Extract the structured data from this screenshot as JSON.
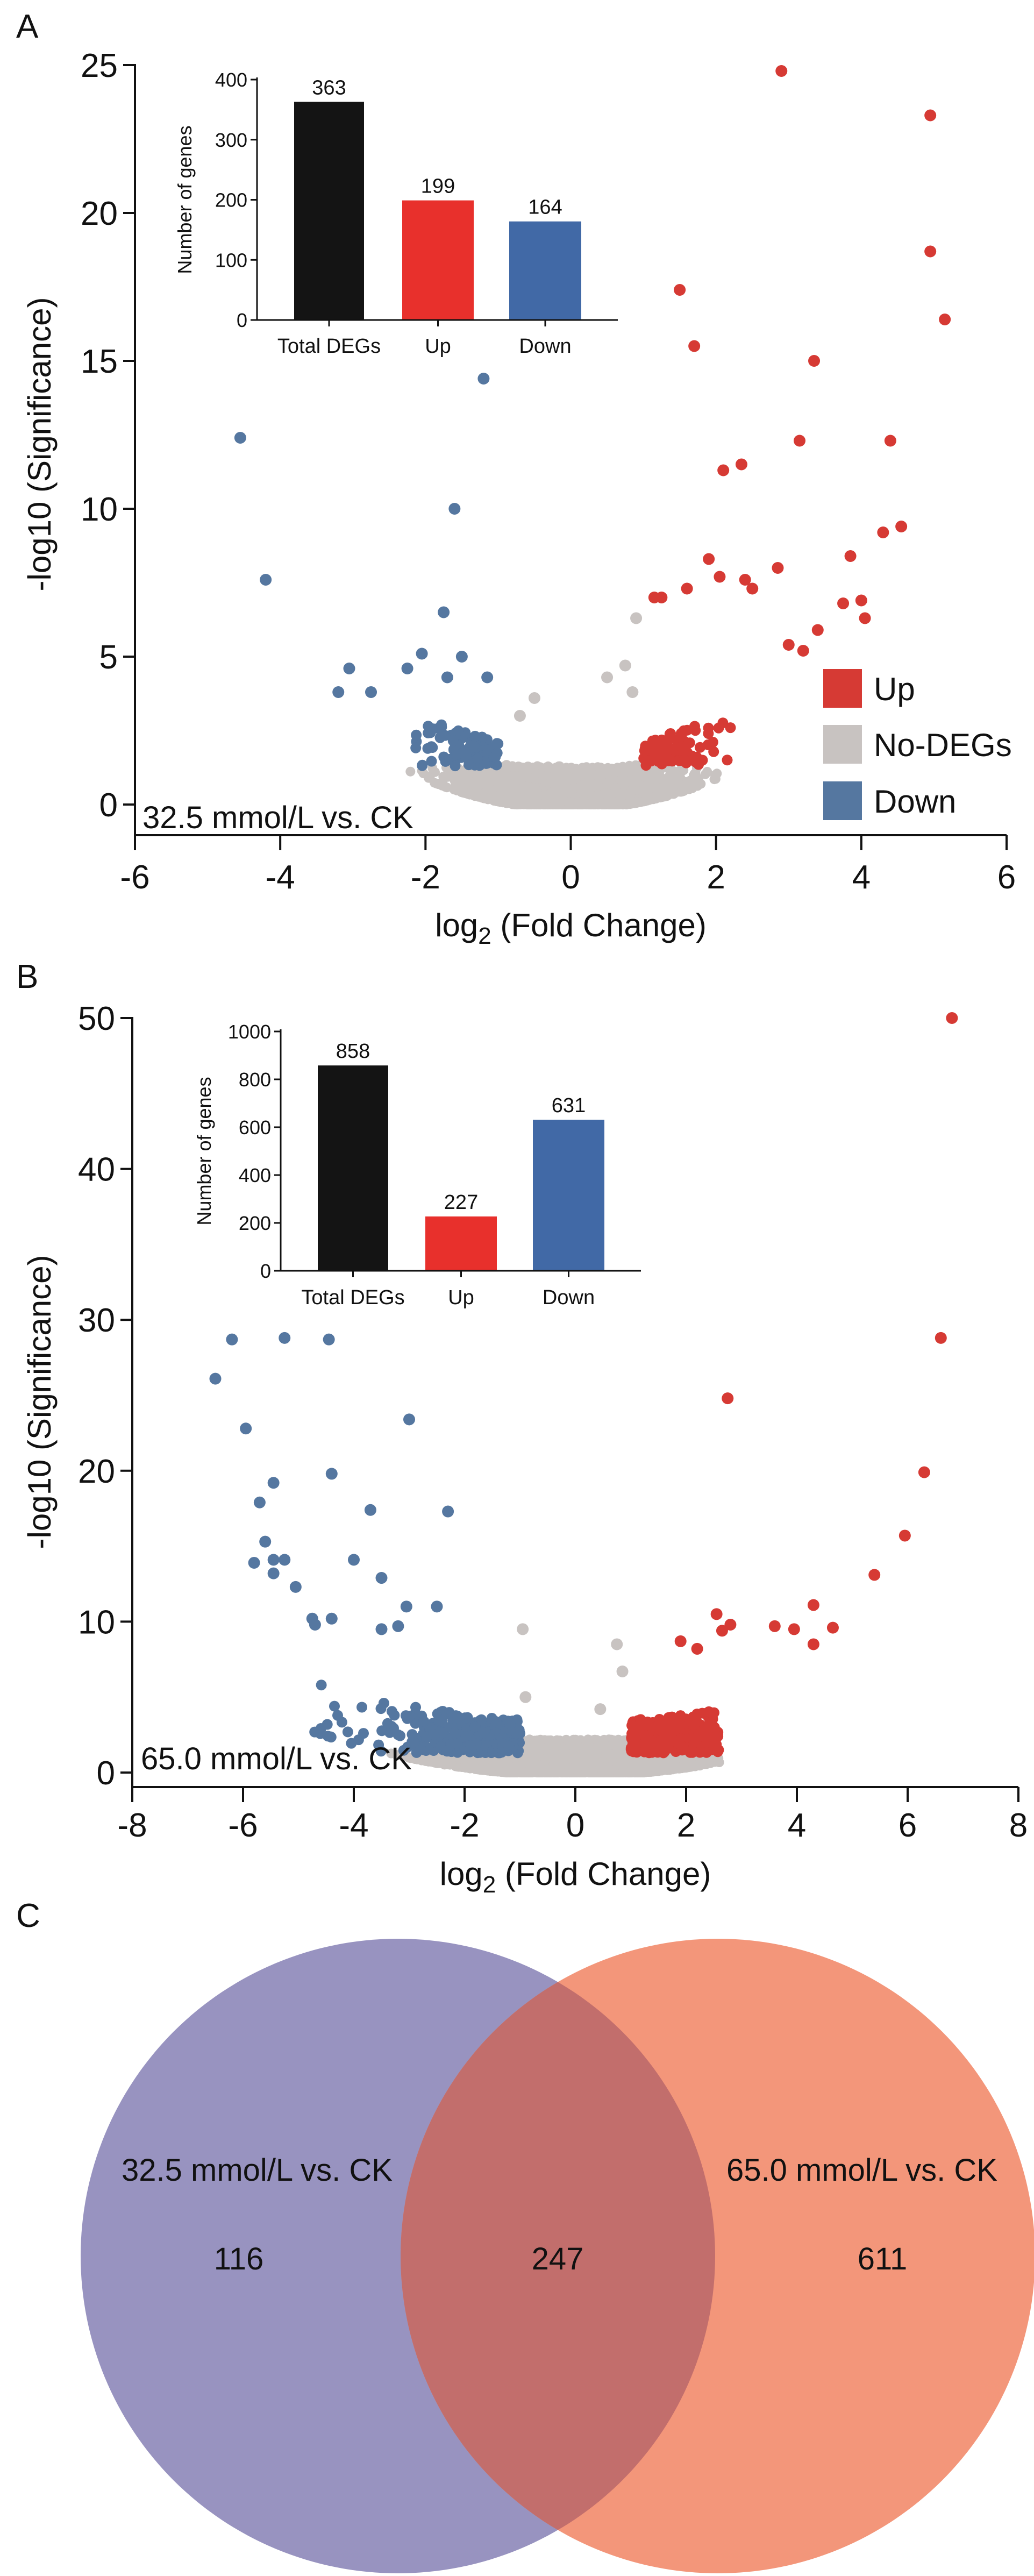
{
  "chart_data": [
    {
      "type": "scatter",
      "panel_label": "A",
      "title": "32.5 mmol/L vs. CK",
      "xlabel_base": "log",
      "xlabel_sub": "2",
      "xlabel_rest": " (Fold Change)",
      "ylabel": "-log10 (Significance)",
      "xlim": [
        -6,
        6
      ],
      "ylim": [
        0,
        25
      ],
      "xticks": [
        -6,
        -4,
        -2,
        0,
        2,
        4,
        6
      ],
      "yticks": [
        0,
        5,
        10,
        15,
        20,
        25
      ],
      "legend": [
        {
          "label": "Up",
          "color": "#d63a34"
        },
        {
          "label": "No-DEGs",
          "color": "#c8c3c1"
        },
        {
          "label": "Down",
          "color": "#5577a0"
        }
      ],
      "legend_position": "bottom-right",
      "outliers": {
        "up": [
          [
            2.9,
            24.8
          ],
          [
            4.95,
            23.3
          ],
          [
            4.95,
            18.7
          ],
          [
            5.15,
            16.4
          ],
          [
            1.5,
            17.4
          ],
          [
            1.7,
            15.5
          ],
          [
            3.35,
            15.0
          ],
          [
            3.15,
            12.3
          ],
          [
            4.4,
            12.3
          ],
          [
            2.1,
            11.3
          ],
          [
            2.35,
            11.5
          ],
          [
            4.55,
            9.4
          ],
          [
            4.3,
            9.2
          ],
          [
            3.85,
            8.4
          ],
          [
            3.75,
            6.8
          ],
          [
            4.0,
            6.9
          ],
          [
            4.05,
            6.3
          ],
          [
            2.85,
            8.0
          ],
          [
            1.9,
            8.3
          ],
          [
            2.05,
            7.7
          ],
          [
            2.4,
            7.6
          ],
          [
            2.5,
            7.3
          ],
          [
            1.15,
            7.0
          ],
          [
            1.25,
            7.0
          ],
          [
            1.6,
            7.3
          ],
          [
            3.4,
            5.9
          ],
          [
            3.0,
            5.4
          ],
          [
            3.2,
            5.2
          ]
        ],
        "down": [
          [
            -4.55,
            12.4
          ],
          [
            -4.2,
            7.6
          ],
          [
            -1.2,
            14.4
          ],
          [
            -1.6,
            10.0
          ],
          [
            -1.75,
            6.5
          ],
          [
            -2.05,
            5.1
          ],
          [
            -1.5,
            5.0
          ],
          [
            -3.05,
            4.6
          ],
          [
            -2.25,
            4.6
          ],
          [
            -1.15,
            4.3
          ],
          [
            -1.7,
            4.3
          ],
          [
            -3.2,
            3.8
          ],
          [
            -2.75,
            3.8
          ]
        ],
        "nodeg": [
          [
            0.9,
            6.3
          ],
          [
            0.75,
            4.7
          ],
          [
            0.5,
            4.3
          ],
          [
            0.85,
            3.8
          ],
          [
            -0.5,
            3.6
          ],
          [
            -0.7,
            3.0
          ]
        ]
      },
      "inset": {
        "type": "bar",
        "ylabel": "Number of genes",
        "ylim": [
          0,
          400
        ],
        "yticks": [
          0,
          100,
          200,
          300,
          400
        ],
        "categories": [
          "Total DEGs",
          "Up",
          "Down"
        ],
        "values": [
          363,
          199,
          164
        ],
        "labels": [
          "363",
          "199",
          "164"
        ],
        "colors": [
          "#141414",
          "#e8302c",
          "#4169a6"
        ]
      }
    },
    {
      "type": "scatter",
      "panel_label": "B",
      "title": "65.0 mmol/L vs. CK",
      "xlabel_base": "log",
      "xlabel_sub": "2",
      "xlabel_rest": " (Fold Change)",
      "ylabel": "-log10 (Significance)",
      "xlim": [
        -8,
        8
      ],
      "ylim": [
        0,
        50
      ],
      "xticks": [
        -8,
        -6,
        -4,
        -2,
        0,
        2,
        4,
        6,
        8
      ],
      "yticks": [
        0,
        10,
        20,
        30,
        40,
        50
      ],
      "outliers": {
        "up": [
          [
            6.8,
            50.0
          ],
          [
            6.6,
            28.8
          ],
          [
            2.75,
            24.8
          ],
          [
            6.3,
            19.9
          ],
          [
            5.95,
            15.7
          ],
          [
            5.4,
            13.1
          ],
          [
            4.3,
            11.1
          ],
          [
            4.65,
            9.6
          ],
          [
            3.95,
            9.5
          ],
          [
            3.6,
            9.7
          ],
          [
            2.55,
            10.5
          ],
          [
            2.65,
            9.4
          ],
          [
            2.8,
            9.8
          ],
          [
            4.3,
            8.5
          ],
          [
            1.9,
            8.7
          ],
          [
            2.2,
            8.2
          ]
        ],
        "down": [
          [
            -6.2,
            28.7
          ],
          [
            -5.25,
            28.8
          ],
          [
            -4.45,
            28.7
          ],
          [
            -6.5,
            26.1
          ],
          [
            -5.95,
            22.8
          ],
          [
            -3.0,
            23.4
          ],
          [
            -4.4,
            19.8
          ],
          [
            -5.45,
            19.2
          ],
          [
            -5.7,
            17.9
          ],
          [
            -3.7,
            17.4
          ],
          [
            -2.3,
            17.3
          ],
          [
            -5.6,
            15.3
          ],
          [
            -5.8,
            13.9
          ],
          [
            -5.45,
            14.1
          ],
          [
            -5.25,
            14.1
          ],
          [
            -4.0,
            14.1
          ],
          [
            -3.5,
            12.9
          ],
          [
            -5.45,
            13.2
          ],
          [
            -5.05,
            12.3
          ],
          [
            -3.05,
            11.0
          ],
          [
            -2.5,
            11.0
          ],
          [
            -4.75,
            10.2
          ],
          [
            -4.4,
            10.2
          ],
          [
            -4.7,
            9.8
          ],
          [
            -3.5,
            9.5
          ],
          [
            -3.2,
            9.7
          ]
        ],
        "nodeg": [
          [
            -0.95,
            9.5
          ],
          [
            0.75,
            8.5
          ],
          [
            0.85,
            6.7
          ],
          [
            0.45,
            4.2
          ],
          [
            -0.9,
            5.0
          ]
        ]
      },
      "inset": {
        "type": "bar",
        "ylabel": "Number of genes",
        "ylim": [
          0,
          1000
        ],
        "yticks": [
          0,
          200,
          400,
          600,
          800,
          1000
        ],
        "categories": [
          "Total DEGs",
          "Up",
          "Down"
        ],
        "values": [
          858,
          227,
          631
        ],
        "labels": [
          "858",
          "227",
          "631"
        ],
        "colors": [
          "#141414",
          "#e8302c",
          "#4169a6"
        ]
      }
    },
    {
      "type": "venn",
      "panel_label": "C",
      "sets": [
        {
          "label": "32.5 mmol/L vs. CK",
          "only": "116",
          "color": "#9893c0"
        },
        {
          "label": "65.0 mmol/L vs. CK",
          "only": "611",
          "color": "#f3967a"
        }
      ],
      "intersection": "247",
      "intersection_color": "#c26e6c"
    }
  ]
}
